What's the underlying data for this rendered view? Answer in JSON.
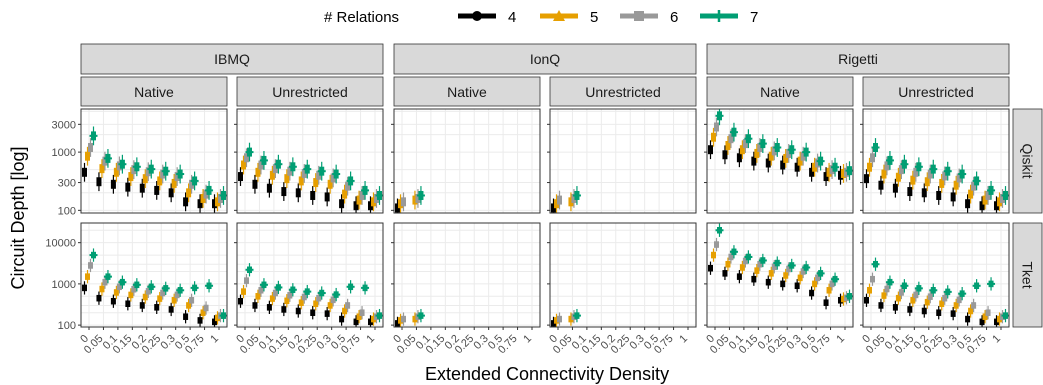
{
  "chart_data": {
    "type": "boxplot-faceted",
    "legend": {
      "title": "# Relations",
      "position": "top",
      "entries": [
        {
          "label": "4",
          "color": "#000000",
          "marker": "circle"
        },
        {
          "label": "5",
          "color": "#E69F00",
          "marker": "triangle"
        },
        {
          "label": "6",
          "color": "#999999",
          "marker": "square"
        },
        {
          "label": "7",
          "color": "#009E73",
          "marker": "cross"
        }
      ]
    },
    "xlabel": "Extended Connectivity Density",
    "ylabel": "Circuit Depth [log]",
    "x_categories": [
      "0",
      "0.05",
      "0.1",
      "0.15",
      "0.2",
      "0.25",
      "0.3",
      "0.5",
      "0.75",
      "1"
    ],
    "column_groups": [
      "IBMQ",
      "IonQ",
      "Rigetti"
    ],
    "column_subgroups": [
      "Native",
      "Unrestricted"
    ],
    "rows": [
      {
        "label": "Qiskit",
        "y_log": true,
        "ylim": [
          90,
          5500
        ],
        "yticks": [
          100,
          300,
          1000,
          3000
        ],
        "ytick_labels": [
          "100",
          "300",
          "1000",
          "3000"
        ]
      },
      {
        "label": "Tket",
        "y_log": true,
        "ylim": [
          90,
          30000
        ],
        "yticks": [
          100,
          1000,
          10000
        ],
        "ytick_labels": [
          "100",
          "1000",
          "10000"
        ]
      }
    ],
    "panels": [
      {
        "row": "Qiskit",
        "group": "IBMQ",
        "subgroup": "Native",
        "series": [
          {
            "name": "4",
            "values": [
              450,
              310,
              280,
              250,
              240,
              220,
              200,
              140,
              130,
              130
            ]
          },
          {
            "name": "5",
            "values": [
              850,
              520,
              450,
              380,
              350,
              320,
              290,
              200,
              160,
              140
            ]
          },
          {
            "name": "6",
            "values": [
              1200,
              700,
              580,
              500,
              460,
              420,
              380,
              280,
              190,
              160
            ]
          },
          {
            "name": "7",
            "values": [
              1900,
              780,
              620,
              560,
              510,
              470,
              420,
              320,
              220,
              180
            ]
          }
        ]
      },
      {
        "row": "Qiskit",
        "group": "IBMQ",
        "subgroup": "Unrestricted",
        "series": [
          {
            "name": "4",
            "values": [
              380,
              280,
              240,
              210,
              200,
              180,
              170,
              130,
              120,
              120
            ]
          },
          {
            "name": "5",
            "values": [
              600,
              450,
              400,
              350,
              320,
              300,
              280,
              190,
              150,
              140
            ]
          },
          {
            "name": "6",
            "values": [
              800,
              600,
              520,
              470,
              430,
              400,
              360,
              260,
              180,
              160
            ]
          },
          {
            "name": "7",
            "values": [
              1000,
              720,
              620,
              560,
              510,
              470,
              420,
              320,
              220,
              180
            ]
          }
        ]
      },
      {
        "row": "Qiskit",
        "group": "IonQ",
        "subgroup": "Native",
        "series": [
          {
            "name": "4",
            "values": [
              110,
              null,
              null,
              null,
              null,
              null,
              null,
              null,
              null,
              null
            ]
          },
          {
            "name": "5",
            "values": [
              130,
              150,
              null,
              null,
              null,
              null,
              null,
              null,
              null,
              null
            ]
          },
          {
            "name": "6",
            "values": [
              140,
              160,
              null,
              null,
              null,
              null,
              null,
              null,
              null,
              null
            ]
          },
          {
            "name": "7",
            "values": [
              null,
              180,
              null,
              null,
              null,
              null,
              null,
              null,
              null,
              null
            ]
          }
        ]
      },
      {
        "row": "Qiskit",
        "group": "IonQ",
        "subgroup": "Unrestricted",
        "series": [
          {
            "name": "4",
            "values": [
              110,
              null,
              null,
              null,
              null,
              null,
              null,
              null,
              null,
              null
            ]
          },
          {
            "name": "5",
            "values": [
              130,
              140,
              null,
              null,
              null,
              null,
              null,
              null,
              null,
              null
            ]
          },
          {
            "name": "6",
            "values": [
              150,
              160,
              null,
              null,
              null,
              null,
              null,
              null,
              null,
              null
            ]
          },
          {
            "name": "7",
            "values": [
              null,
              180,
              null,
              null,
              null,
              null,
              null,
              null,
              null,
              null
            ]
          }
        ]
      },
      {
        "row": "Qiskit",
        "group": "Rigetti",
        "subgroup": "Native",
        "series": [
          {
            "name": "4",
            "values": [
              1100,
              900,
              800,
              700,
              650,
              600,
              550,
              450,
              380,
              400
            ]
          },
          {
            "name": "5",
            "values": [
              1800,
              1300,
              1100,
              950,
              850,
              780,
              700,
              550,
              450,
              430
            ]
          },
          {
            "name": "6",
            "values": [
              2700,
              1700,
              1400,
              1200,
              1050,
              950,
              850,
              650,
              500,
              450
            ]
          },
          {
            "name": "7",
            "values": [
              4200,
              2200,
              1700,
              1400,
              1200,
              1100,
              1000,
              700,
              550,
              480
            ]
          }
        ]
      },
      {
        "row": "Qiskit",
        "group": "Rigetti",
        "subgroup": "Unrestricted",
        "series": [
          {
            "name": "4",
            "values": [
              350,
              270,
              240,
              210,
              200,
              180,
              170,
              130,
              120,
              120
            ]
          },
          {
            "name": "5",
            "values": [
              550,
              420,
              370,
              330,
              310,
              290,
              270,
              190,
              150,
              140
            ]
          },
          {
            "name": "6",
            "values": [
              800,
              580,
              500,
              450,
              420,
              390,
              360,
              260,
              180,
              160
            ]
          },
          {
            "name": "7",
            "values": [
              1200,
              720,
              620,
              560,
              510,
              470,
              420,
              320,
              220,
              180
            ]
          }
        ]
      },
      {
        "row": "Tket",
        "group": "IBMQ",
        "subgroup": "Native",
        "series": [
          {
            "name": "4",
            "values": [
              800,
              450,
              380,
              330,
              300,
              270,
              240,
              160,
              130,
              120
            ]
          },
          {
            "name": "5",
            "values": [
              1500,
              750,
              620,
              540,
              480,
              440,
              400,
              300,
              200,
              150
            ]
          },
          {
            "name": "6",
            "values": [
              2800,
              1100,
              850,
              740,
              660,
              600,
              540,
              400,
              260,
              170
            ]
          },
          {
            "name": "7",
            "values": [
              5000,
              1500,
              1100,
              950,
              850,
              780,
              700,
              800,
              900,
              170
            ]
          }
        ]
      },
      {
        "row": "Tket",
        "group": "IBMQ",
        "subgroup": "Unrestricted",
        "series": [
          {
            "name": "4",
            "values": [
              380,
              300,
              270,
              240,
              220,
              200,
              190,
              140,
              120,
              120
            ]
          },
          {
            "name": "5",
            "values": [
              650,
              500,
              440,
              390,
              350,
              330,
              300,
              220,
              160,
              140
            ]
          },
          {
            "name": "6",
            "values": [
              1200,
              700,
              600,
              530,
              480,
              450,
              410,
              300,
              200,
              160
            ]
          },
          {
            "name": "7",
            "values": [
              2200,
              950,
              820,
              720,
              650,
              600,
              550,
              850,
              800,
              170
            ]
          }
        ]
      },
      {
        "row": "Tket",
        "group": "IonQ",
        "subgroup": "Native",
        "series": [
          {
            "name": "4",
            "values": [
              110,
              null,
              null,
              null,
              null,
              null,
              null,
              null,
              null,
              null
            ]
          },
          {
            "name": "5",
            "values": [
              130,
              140,
              null,
              null,
              null,
              null,
              null,
              null,
              null,
              null
            ]
          },
          {
            "name": "6",
            "values": [
              140,
              160,
              null,
              null,
              null,
              null,
              null,
              null,
              null,
              null
            ]
          },
          {
            "name": "7",
            "values": [
              null,
              170,
              null,
              null,
              null,
              null,
              null,
              null,
              null,
              null
            ]
          }
        ]
      },
      {
        "row": "Tket",
        "group": "IonQ",
        "subgroup": "Unrestricted",
        "series": [
          {
            "name": "4",
            "values": [
              110,
              null,
              null,
              null,
              null,
              null,
              null,
              null,
              null,
              null
            ]
          },
          {
            "name": "5",
            "values": [
              130,
              140,
              null,
              null,
              null,
              null,
              null,
              null,
              null,
              null
            ]
          },
          {
            "name": "6",
            "values": [
              140,
              160,
              null,
              null,
              null,
              null,
              null,
              null,
              null,
              null
            ]
          },
          {
            "name": "7",
            "values": [
              null,
              170,
              null,
              null,
              null,
              null,
              null,
              null,
              null,
              null
            ]
          }
        ]
      },
      {
        "row": "Tket",
        "group": "Rigetti",
        "subgroup": "Native",
        "series": [
          {
            "name": "4",
            "values": [
              2400,
              1800,
              1500,
              1300,
              1100,
              1000,
              900,
              600,
              350,
              400
            ]
          },
          {
            "name": "5",
            "values": [
              5000,
              3000,
              2500,
              2100,
              1800,
              1600,
              1400,
              1000,
              700,
              430
            ]
          },
          {
            "name": "6",
            "values": [
              9000,
              4500,
              3600,
              3000,
              2600,
              2300,
              2000,
              1400,
              1000,
              460
            ]
          },
          {
            "name": "7",
            "values": [
              20000,
              6000,
              4500,
              3700,
              3200,
              2800,
              2500,
              1800,
              1300,
              500
            ]
          }
        ]
      },
      {
        "row": "Tket",
        "group": "Rigetti",
        "subgroup": "Unrestricted",
        "series": [
          {
            "name": "4",
            "values": [
              400,
              300,
              270,
              240,
              220,
              200,
              190,
              140,
              120,
              120
            ]
          },
          {
            "name": "5",
            "values": [
              700,
              520,
              450,
              400,
              360,
              330,
              300,
              220,
              160,
              140
            ]
          },
          {
            "name": "6",
            "values": [
              1300,
              750,
              620,
              540,
              490,
              450,
              410,
              300,
              200,
              160
            ]
          },
          {
            "name": "7",
            "values": [
              3000,
              1100,
              900,
              780,
              700,
              640,
              580,
              900,
              1000,
              170
            ]
          }
        ]
      }
    ],
    "grid": true
  }
}
